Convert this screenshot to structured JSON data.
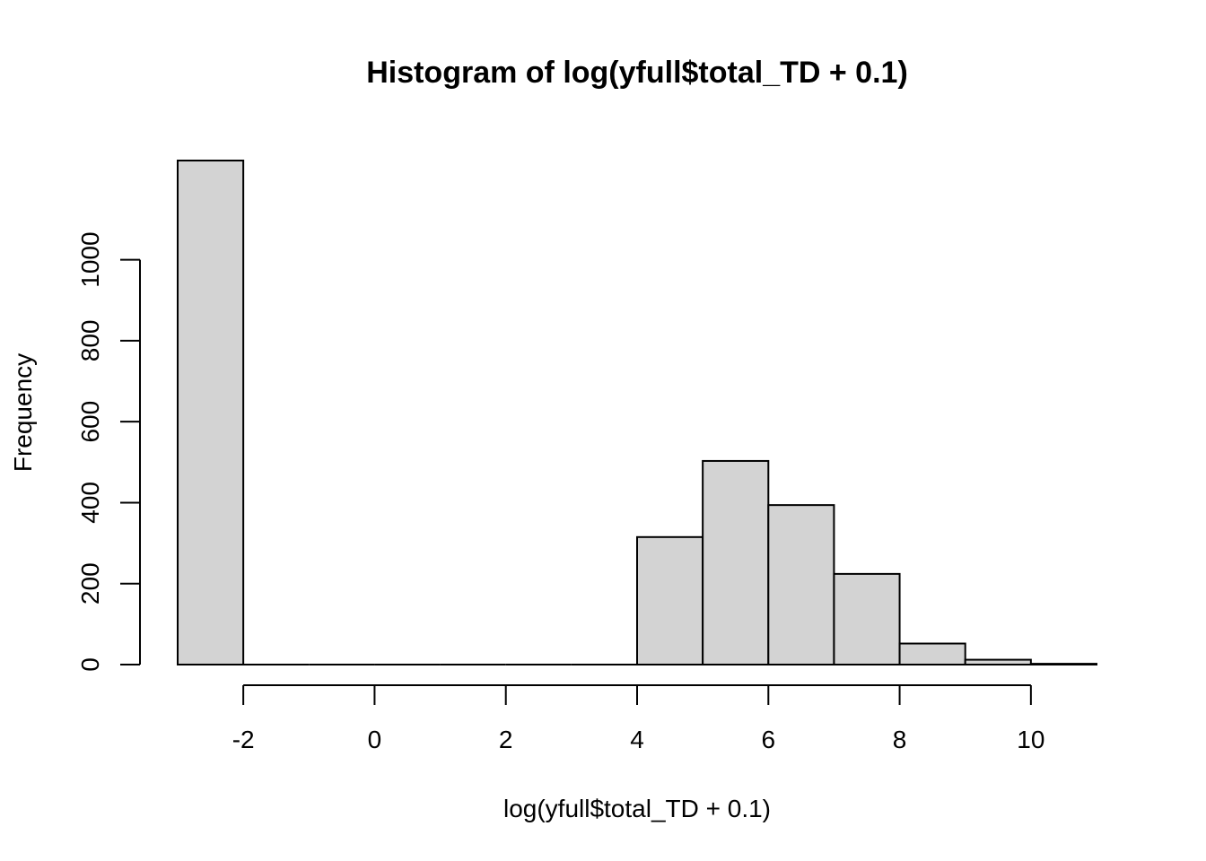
{
  "chart_data": {
    "type": "bar",
    "title": "Histogram of log(yfull$total_TD + 0.1)",
    "xlabel": "log(yfull$total_TD + 0.1)",
    "ylabel": "Frequency",
    "bins": [
      {
        "start": -3,
        "end": -2,
        "count": 1245
      },
      {
        "start": -2,
        "end": -1,
        "count": 0
      },
      {
        "start": -1,
        "end": 0,
        "count": 0
      },
      {
        "start": 0,
        "end": 1,
        "count": 0
      },
      {
        "start": 1,
        "end": 2,
        "count": 0
      },
      {
        "start": 2,
        "end": 3,
        "count": 0
      },
      {
        "start": 3,
        "end": 4,
        "count": 0
      },
      {
        "start": 4,
        "end": 5,
        "count": 315
      },
      {
        "start": 5,
        "end": 6,
        "count": 503
      },
      {
        "start": 6,
        "end": 7,
        "count": 394
      },
      {
        "start": 7,
        "end": 8,
        "count": 224
      },
      {
        "start": 8,
        "end": 9,
        "count": 52
      },
      {
        "start": 9,
        "end": 10,
        "count": 12
      },
      {
        "start": 10,
        "end": 11,
        "count": 2
      }
    ],
    "xlim": [
      -3,
      11
    ],
    "ylim": [
      0,
      1245
    ],
    "x_ticks": [
      -2,
      0,
      2,
      4,
      6,
      8,
      10
    ],
    "y_ticks": [
      0,
      200,
      400,
      600,
      800,
      1000
    ],
    "x_tick_labels": [
      "-2",
      "0",
      "2",
      "4",
      "6",
      "8",
      "10"
    ],
    "y_tick_labels": [
      "0",
      "200",
      "400",
      "600",
      "800",
      "1000"
    ],
    "bar_color": "#d3d3d3",
    "edge_color": "#000000",
    "grid": false
  }
}
